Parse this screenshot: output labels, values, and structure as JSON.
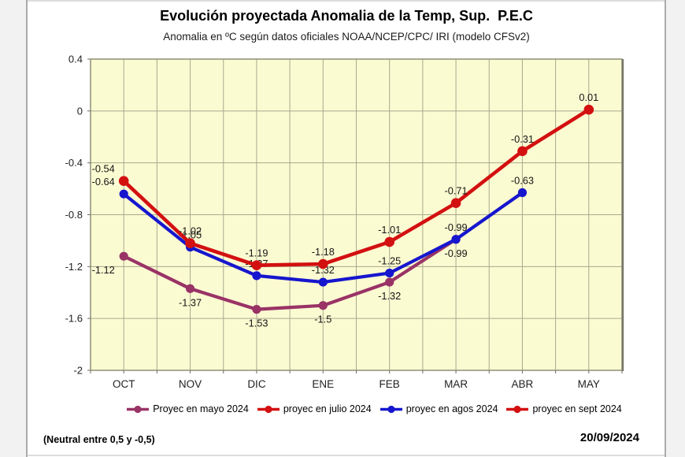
{
  "title": "Evolución proyectada Anomalia de la Temp, Sup.  P.E.C",
  "subtitle": "Anomalia en ºC según datos oficiales NOAA/NCEP/CPC/ IRI (modelo CFSv2)",
  "footer": {
    "note": "(Neutral entre 0,5 y -0,5)",
    "date": "20/09/2024"
  },
  "legend": {
    "position": "bottom",
    "items": [
      {
        "label": "Proyec en mayo 2024",
        "color": "#993366"
      },
      {
        "label": "proyec en julio 2024",
        "color": "#D31010"
      },
      {
        "label": "proyec en agos 2024",
        "color": "#1616CE"
      },
      {
        "label": "proyec en sept 2024",
        "color": "#D31010"
      }
    ]
  },
  "chart_data": {
    "type": "line",
    "categories": [
      "OCT",
      "NOV",
      "DIC",
      "ENE",
      "FEB",
      "MAR",
      "ABR",
      "MAY"
    ],
    "ylim": [
      -2,
      0.4
    ],
    "yticks": [
      0.4,
      0,
      -0.4,
      -0.8,
      -1.2,
      -1.6,
      -2
    ],
    "ytick_labels": [
      "0.4",
      "0",
      "-0.4",
      "-0.8",
      "-1.2",
      "-1.6",
      "-2"
    ],
    "grid": true,
    "minor_x_divisions": 2,
    "plot_bg": "#FBFBD2",
    "grid_color": "#A9A98E",
    "border_color": "#87876F",
    "label_color": "#151515",
    "series": [
      {
        "name": "Proyec en mayo 2024",
        "color": "#993366",
        "values": [
          -1.12,
          -1.37,
          -1.53,
          -1.5,
          -1.32,
          -0.99,
          null,
          null
        ],
        "labels": [
          "-1.12",
          "-1.37",
          "-1.53",
          "-1.5",
          "-1.32",
          "-0.99",
          null,
          null
        ],
        "label_side": "below"
      },
      {
        "name": "proyec en agos 2024",
        "color": "#1616CE",
        "values": [
          -0.64,
          -1.05,
          -1.27,
          -1.32,
          -1.25,
          -0.99,
          -0.63,
          null
        ],
        "labels": [
          "-0.64",
          "-1.05",
          "-1.27",
          "-1.32",
          "-1.25",
          "-0.99",
          "-0.63",
          null
        ],
        "label_side": "above"
      },
      {
        "name": "proyec en sept 2024",
        "color": "#D31010",
        "values": [
          -0.54,
          -1.02,
          -1.19,
          -1.18,
          -1.01,
          -0.71,
          -0.31,
          0.01
        ],
        "labels": [
          "-0.54",
          "-1.02",
          "-1.19",
          "-1.18",
          "-1.01",
          "-0.71",
          "-0.31",
          "0.01"
        ],
        "label_side": "above"
      }
    ]
  }
}
